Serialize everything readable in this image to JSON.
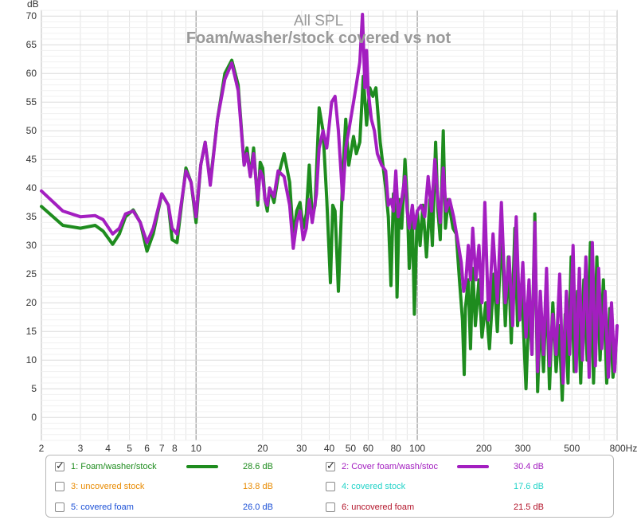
{
  "chart_data": {
    "type": "line",
    "title": "All SPL",
    "subtitle": "Foam/washer/stock covered vs not",
    "ylabel": "dB",
    "xunit": "Hz",
    "xscale": "log",
    "xlim": [
      2,
      800
    ],
    "ylim": [
      -4,
      71
    ],
    "grid": true,
    "xticks": [
      {
        "v": 2,
        "t": "2"
      },
      {
        "v": 3,
        "t": "3"
      },
      {
        "v": 4,
        "t": "4"
      },
      {
        "v": 5,
        "t": "5"
      },
      {
        "v": 6,
        "t": "6"
      },
      {
        "v": 7,
        "t": "7"
      },
      {
        "v": 8,
        "t": "8"
      },
      {
        "v": 10,
        "t": "10"
      },
      {
        "v": 20,
        "t": "20"
      },
      {
        "v": 30,
        "t": "30"
      },
      {
        "v": 40,
        "t": "40"
      },
      {
        "v": 50,
        "t": "50"
      },
      {
        "v": 60,
        "t": "60"
      },
      {
        "v": 80,
        "t": "80"
      },
      {
        "v": 100,
        "t": "100"
      },
      {
        "v": 200,
        "t": "200"
      },
      {
        "v": 300,
        "t": "300"
      },
      {
        "v": 500,
        "t": "500"
      },
      {
        "v": 800,
        "t": "800Hz"
      }
    ],
    "yticks": [
      0,
      5,
      10,
      15,
      20,
      25,
      30,
      35,
      40,
      45,
      50,
      55,
      60,
      65,
      70
    ],
    "series": [
      {
        "name": "1: Foam/washer/stock",
        "color": "#1e8c1e",
        "points": [
          [
            2,
            36.8
          ],
          [
            2.5,
            33.5
          ],
          [
            3,
            33
          ],
          [
            3.5,
            33.5
          ],
          [
            3.8,
            32.5
          ],
          [
            4.2,
            30.2
          ],
          [
            4.5,
            32
          ],
          [
            4.8,
            35
          ],
          [
            5.2,
            36.2
          ],
          [
            5.6,
            34
          ],
          [
            6,
            29
          ],
          [
            6.4,
            32
          ],
          [
            7,
            39
          ],
          [
            7.5,
            37
          ],
          [
            7.8,
            31
          ],
          [
            8.2,
            30.5
          ],
          [
            9,
            43.5
          ],
          [
            9.5,
            41
          ],
          [
            10,
            34
          ],
          [
            10.5,
            44
          ],
          [
            11,
            48
          ],
          [
            11.6,
            41
          ],
          [
            12.5,
            52
          ],
          [
            13.5,
            60
          ],
          [
            14.5,
            62.3
          ],
          [
            15.5,
            58
          ],
          [
            16.5,
            44
          ],
          [
            17,
            47
          ],
          [
            17.6,
            42
          ],
          [
            18.2,
            47
          ],
          [
            19,
            37
          ],
          [
            19.5,
            44.5
          ],
          [
            20,
            43.5
          ],
          [
            20.5,
            38
          ],
          [
            21,
            36
          ],
          [
            21.5,
            40
          ],
          [
            22.5,
            37.5
          ],
          [
            23.5,
            42
          ],
          [
            25,
            46
          ],
          [
            26.5,
            41
          ],
          [
            27.5,
            31.5
          ],
          [
            28.5,
            36
          ],
          [
            29.5,
            37.5
          ],
          [
            30.5,
            33
          ],
          [
            31.5,
            35.5
          ],
          [
            32.5,
            44
          ],
          [
            33.5,
            35
          ],
          [
            34.5,
            37
          ],
          [
            36,
            54
          ],
          [
            37.5,
            50
          ],
          [
            39,
            38
          ],
          [
            40.5,
            23.5
          ],
          [
            41.5,
            37
          ],
          [
            42.5,
            36
          ],
          [
            44,
            22
          ],
          [
            46,
            42
          ],
          [
            47.5,
            52
          ],
          [
            49,
            44
          ],
          [
            51.5,
            49
          ],
          [
            53,
            46
          ],
          [
            55,
            48
          ],
          [
            57,
            59.5
          ],
          [
            59,
            51
          ],
          [
            61,
            57.5
          ],
          [
            63,
            56
          ],
          [
            65,
            57.5
          ],
          [
            68,
            48
          ],
          [
            72,
            40
          ],
          [
            74,
            35
          ],
          [
            76,
            23
          ],
          [
            78,
            39
          ],
          [
            80,
            35
          ],
          [
            81,
            21
          ],
          [
            83,
            38
          ],
          [
            85,
            33
          ],
          [
            88,
            45
          ],
          [
            90,
            38
          ],
          [
            92,
            26
          ],
          [
            95,
            35
          ],
          [
            97,
            18
          ],
          [
            100,
            36
          ],
          [
            103,
            30
          ],
          [
            106,
            37
          ],
          [
            110,
            28
          ],
          [
            114,
            38
          ],
          [
            117,
            30
          ],
          [
            121,
            48
          ],
          [
            124,
            36
          ],
          [
            127,
            31
          ],
          [
            131,
            50
          ],
          [
            134,
            33
          ],
          [
            138,
            38
          ],
          [
            145,
            33
          ],
          [
            150,
            32
          ],
          [
            155,
            24
          ],
          [
            160,
            17
          ],
          [
            163,
            7.5
          ],
          [
            165,
            19
          ],
          [
            170,
            24
          ],
          [
            174,
            12
          ],
          [
            178,
            26
          ],
          [
            183,
            16
          ],
          [
            190,
            24
          ],
          [
            196,
            14
          ],
          [
            204,
            20
          ],
          [
            212,
            12
          ],
          [
            222,
            25
          ],
          [
            230,
            15
          ],
          [
            240,
            33
          ],
          [
            250,
            16
          ],
          [
            258,
            28
          ],
          [
            266,
            13
          ],
          [
            276,
            33
          ],
          [
            284,
            16
          ],
          [
            292,
            23
          ],
          [
            300,
            18
          ],
          [
            310,
            5
          ],
          [
            320,
            20
          ],
          [
            330,
            11
          ],
          [
            340,
            35.5
          ],
          [
            350,
            4.5
          ],
          [
            360,
            18
          ],
          [
            372,
            8
          ],
          [
            384,
            23
          ],
          [
            396,
            5
          ],
          [
            410,
            20
          ],
          [
            424,
            8
          ],
          [
            438,
            16
          ],
          [
            452,
            3
          ],
          [
            466,
            18
          ],
          [
            480,
            6
          ],
          [
            496,
            28
          ],
          [
            512,
            8
          ],
          [
            530,
            22
          ],
          [
            548,
            6
          ],
          [
            566,
            24
          ],
          [
            586,
            10
          ],
          [
            606,
            30.5
          ],
          [
            626,
            6
          ],
          [
            648,
            28
          ],
          [
            670,
            10
          ],
          [
            694,
            24
          ],
          [
            718,
            6
          ],
          [
            742,
            19
          ],
          [
            766,
            7
          ],
          [
            790,
            12
          ]
        ]
      },
      {
        "name": "2: Cover foam/wash/stoc",
        "color": "#a31ec0",
        "points": [
          [
            2,
            39.5
          ],
          [
            2.5,
            36
          ],
          [
            3,
            35
          ],
          [
            3.5,
            35.2
          ],
          [
            3.8,
            34.5
          ],
          [
            4.2,
            32
          ],
          [
            4.5,
            33
          ],
          [
            4.8,
            35.5
          ],
          [
            5.2,
            36
          ],
          [
            5.6,
            34
          ],
          [
            6,
            30.5
          ],
          [
            6.4,
            33
          ],
          [
            7,
            39
          ],
          [
            7.5,
            37
          ],
          [
            7.8,
            33
          ],
          [
            8.2,
            32
          ],
          [
            9,
            43
          ],
          [
            9.5,
            41
          ],
          [
            10,
            35
          ],
          [
            10.5,
            44
          ],
          [
            11,
            48
          ],
          [
            11.6,
            40.5
          ],
          [
            12.5,
            52
          ],
          [
            13.5,
            59
          ],
          [
            14.5,
            61.8
          ],
          [
            15.5,
            57
          ],
          [
            16.5,
            44
          ],
          [
            17,
            46
          ],
          [
            17.6,
            42
          ],
          [
            18.2,
            46
          ],
          [
            19,
            38
          ],
          [
            19.5,
            43
          ],
          [
            20,
            42
          ],
          [
            20.5,
            38
          ],
          [
            21,
            37
          ],
          [
            21.5,
            40
          ],
          [
            22.5,
            38.5
          ],
          [
            23.5,
            43
          ],
          [
            25,
            42
          ],
          [
            26.5,
            37
          ],
          [
            27.5,
            29.5
          ],
          [
            28.5,
            34
          ],
          [
            29.5,
            36
          ],
          [
            30.5,
            31
          ],
          [
            31.5,
            33
          ],
          [
            32.5,
            38
          ],
          [
            33.5,
            34
          ],
          [
            35,
            39
          ],
          [
            36,
            47
          ],
          [
            37.5,
            50
          ],
          [
            39,
            47
          ],
          [
            41,
            55
          ],
          [
            42.5,
            56
          ],
          [
            44,
            50
          ],
          [
            46,
            38
          ],
          [
            47.5,
            47
          ],
          [
            49,
            50
          ],
          [
            51.5,
            55
          ],
          [
            53,
            58
          ],
          [
            55,
            62
          ],
          [
            56.5,
            70.3
          ],
          [
            58,
            57.5
          ],
          [
            59,
            64
          ],
          [
            60,
            57
          ],
          [
            62,
            52
          ],
          [
            64,
            50
          ],
          [
            66,
            46
          ],
          [
            69,
            44
          ],
          [
            72,
            43
          ],
          [
            74,
            37
          ],
          [
            76,
            38
          ],
          [
            78,
            36
          ],
          [
            80,
            43
          ],
          [
            82,
            35
          ],
          [
            85,
            38
          ],
          [
            88,
            42
          ],
          [
            90,
            36
          ],
          [
            92,
            33
          ],
          [
            95,
            37
          ],
          [
            97,
            33
          ],
          [
            100,
            36
          ],
          [
            104,
            37
          ],
          [
            108,
            35
          ],
          [
            112,
            42
          ],
          [
            116,
            36
          ],
          [
            120,
            45
          ],
          [
            124,
            38
          ],
          [
            127,
            34
          ],
          [
            131,
            43.5
          ],
          [
            135,
            36
          ],
          [
            140,
            38
          ],
          [
            146,
            35
          ],
          [
            152,
            31
          ],
          [
            158,
            27
          ],
          [
            162,
            22
          ],
          [
            166,
            24
          ],
          [
            170,
            30
          ],
          [
            174,
            24
          ],
          [
            178,
            33
          ],
          [
            184,
            24
          ],
          [
            190,
            30
          ],
          [
            196,
            20
          ],
          [
            202,
            37.5
          ],
          [
            210,
            17
          ],
          [
            220,
            32
          ],
          [
            230,
            20
          ],
          [
            240,
            37.5
          ],
          [
            250,
            20
          ],
          [
            260,
            28
          ],
          [
            270,
            16
          ],
          [
            280,
            35
          ],
          [
            290,
            17
          ],
          [
            300,
            27
          ],
          [
            310,
            14
          ],
          [
            320,
            24
          ],
          [
            330,
            11
          ],
          [
            340,
            34
          ],
          [
            350,
            8
          ],
          [
            360,
            22
          ],
          [
            372,
            11
          ],
          [
            384,
            26
          ],
          [
            396,
            9
          ],
          [
            410,
            18
          ],
          [
            424,
            11
          ],
          [
            440,
            25
          ],
          [
            456,
            6
          ],
          [
            472,
            22
          ],
          [
            488,
            11
          ],
          [
            506,
            30
          ],
          [
            522,
            8
          ],
          [
            540,
            26
          ],
          [
            558,
            10
          ],
          [
            578,
            28
          ],
          [
            598,
            7
          ],
          [
            618,
            30.5
          ],
          [
            638,
            9
          ],
          [
            660,
            26
          ],
          [
            682,
            12
          ],
          [
            706,
            22
          ],
          [
            730,
            7
          ],
          [
            755,
            20
          ],
          [
            780,
            8
          ],
          [
            800,
            16
          ]
        ]
      }
    ],
    "legend": {
      "placement": "bottom",
      "entries": [
        {
          "name": "1: Foam/washer/stock",
          "value": "28.6 dB",
          "checked": true,
          "show_line": true,
          "color": "#1e8c1e",
          "text_color": "#1e8c1e"
        },
        {
          "name": "2: Cover foam/wash/stoc",
          "value": "30.4 dB",
          "checked": true,
          "show_line": true,
          "color": "#a31ec0",
          "text_color": "#a31ec0"
        },
        {
          "name": "3: uncovered stock",
          "value": "13.8 dB",
          "checked": false,
          "show_line": false,
          "color": "#e88a00",
          "text_color": "#e88a00"
        },
        {
          "name": "4: covered stock",
          "value": "17.6 dB",
          "checked": false,
          "show_line": false,
          "color": "#22d3c8",
          "text_color": "#22d3c8"
        },
        {
          "name": "5: covered foam",
          "value": "26.0 dB",
          "checked": false,
          "show_line": false,
          "color": "#1a4fd6",
          "text_color": "#1a4fd6"
        },
        {
          "name": "6: uncovered foam",
          "value": "21.5 dB",
          "checked": false,
          "show_line": false,
          "color": "#b3142a",
          "text_color": "#b3142a"
        }
      ]
    }
  }
}
